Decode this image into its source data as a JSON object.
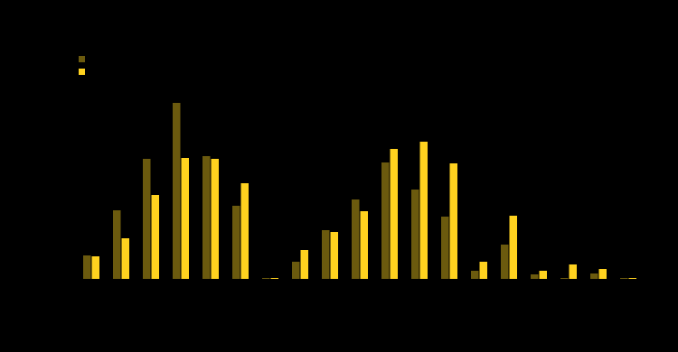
{
  "chart_data": {
    "type": "bar",
    "categories": [
      null,
      null,
      null,
      null,
      null,
      null,
      null,
      null,
      null,
      null,
      null,
      null,
      null,
      null,
      null,
      null,
      null,
      null,
      null
    ],
    "series": [
      {
        "color": "#6b5a0e",
        "values": [
          26,
          76,
          133,
          195,
          136,
          81,
          1,
          19,
          54,
          88,
          129,
          99,
          69,
          9,
          38,
          5,
          1,
          6,
          1
        ]
      },
      {
        "color": "#ffd21f",
        "values": [
          25,
          45,
          93,
          134,
          133,
          106,
          1,
          32,
          52,
          75,
          144,
          152,
          128,
          19,
          70,
          9,
          16,
          11,
          1
        ]
      }
    ],
    "ylim": [
      0,
      270
    ]
  }
}
